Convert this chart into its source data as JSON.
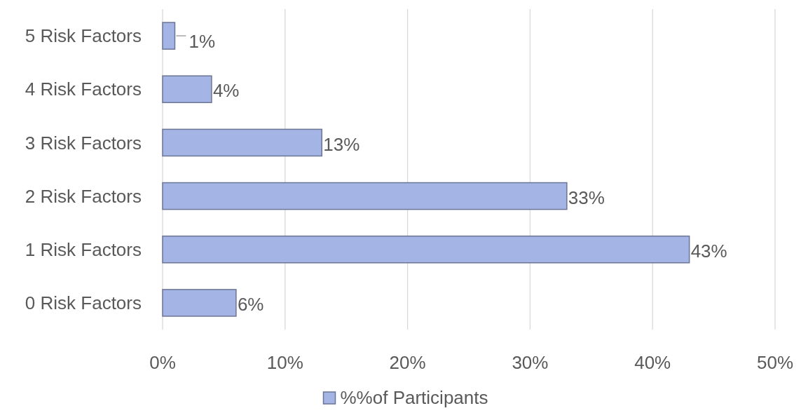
{
  "chart_data": {
    "type": "bar",
    "orientation": "horizontal",
    "categories": [
      "5 Risk Factors",
      "4 Risk Factors",
      "3 Risk Factors",
      "2 Risk Factors",
      "1 Risk Factors",
      "0 Risk Factors"
    ],
    "series": [
      {
        "name": "%%of Participants",
        "color": "#a4b4e4",
        "values": [
          1,
          4,
          13,
          33,
          43,
          6
        ],
        "value_labels": [
          "1%",
          "4%",
          "13%",
          "33%",
          "43%",
          "6%"
        ]
      }
    ],
    "xlim": [
      0,
      50
    ],
    "xticks": [
      {
        "value": 0,
        "label": "0%"
      },
      {
        "value": 10,
        "label": "10%"
      },
      {
        "value": 20,
        "label": "20%"
      },
      {
        "value": 30,
        "label": "30%"
      },
      {
        "value": 40,
        "label": "40%"
      },
      {
        "value": 50,
        "label": "50%"
      }
    ],
    "grid": "x",
    "legend": "bottom"
  }
}
